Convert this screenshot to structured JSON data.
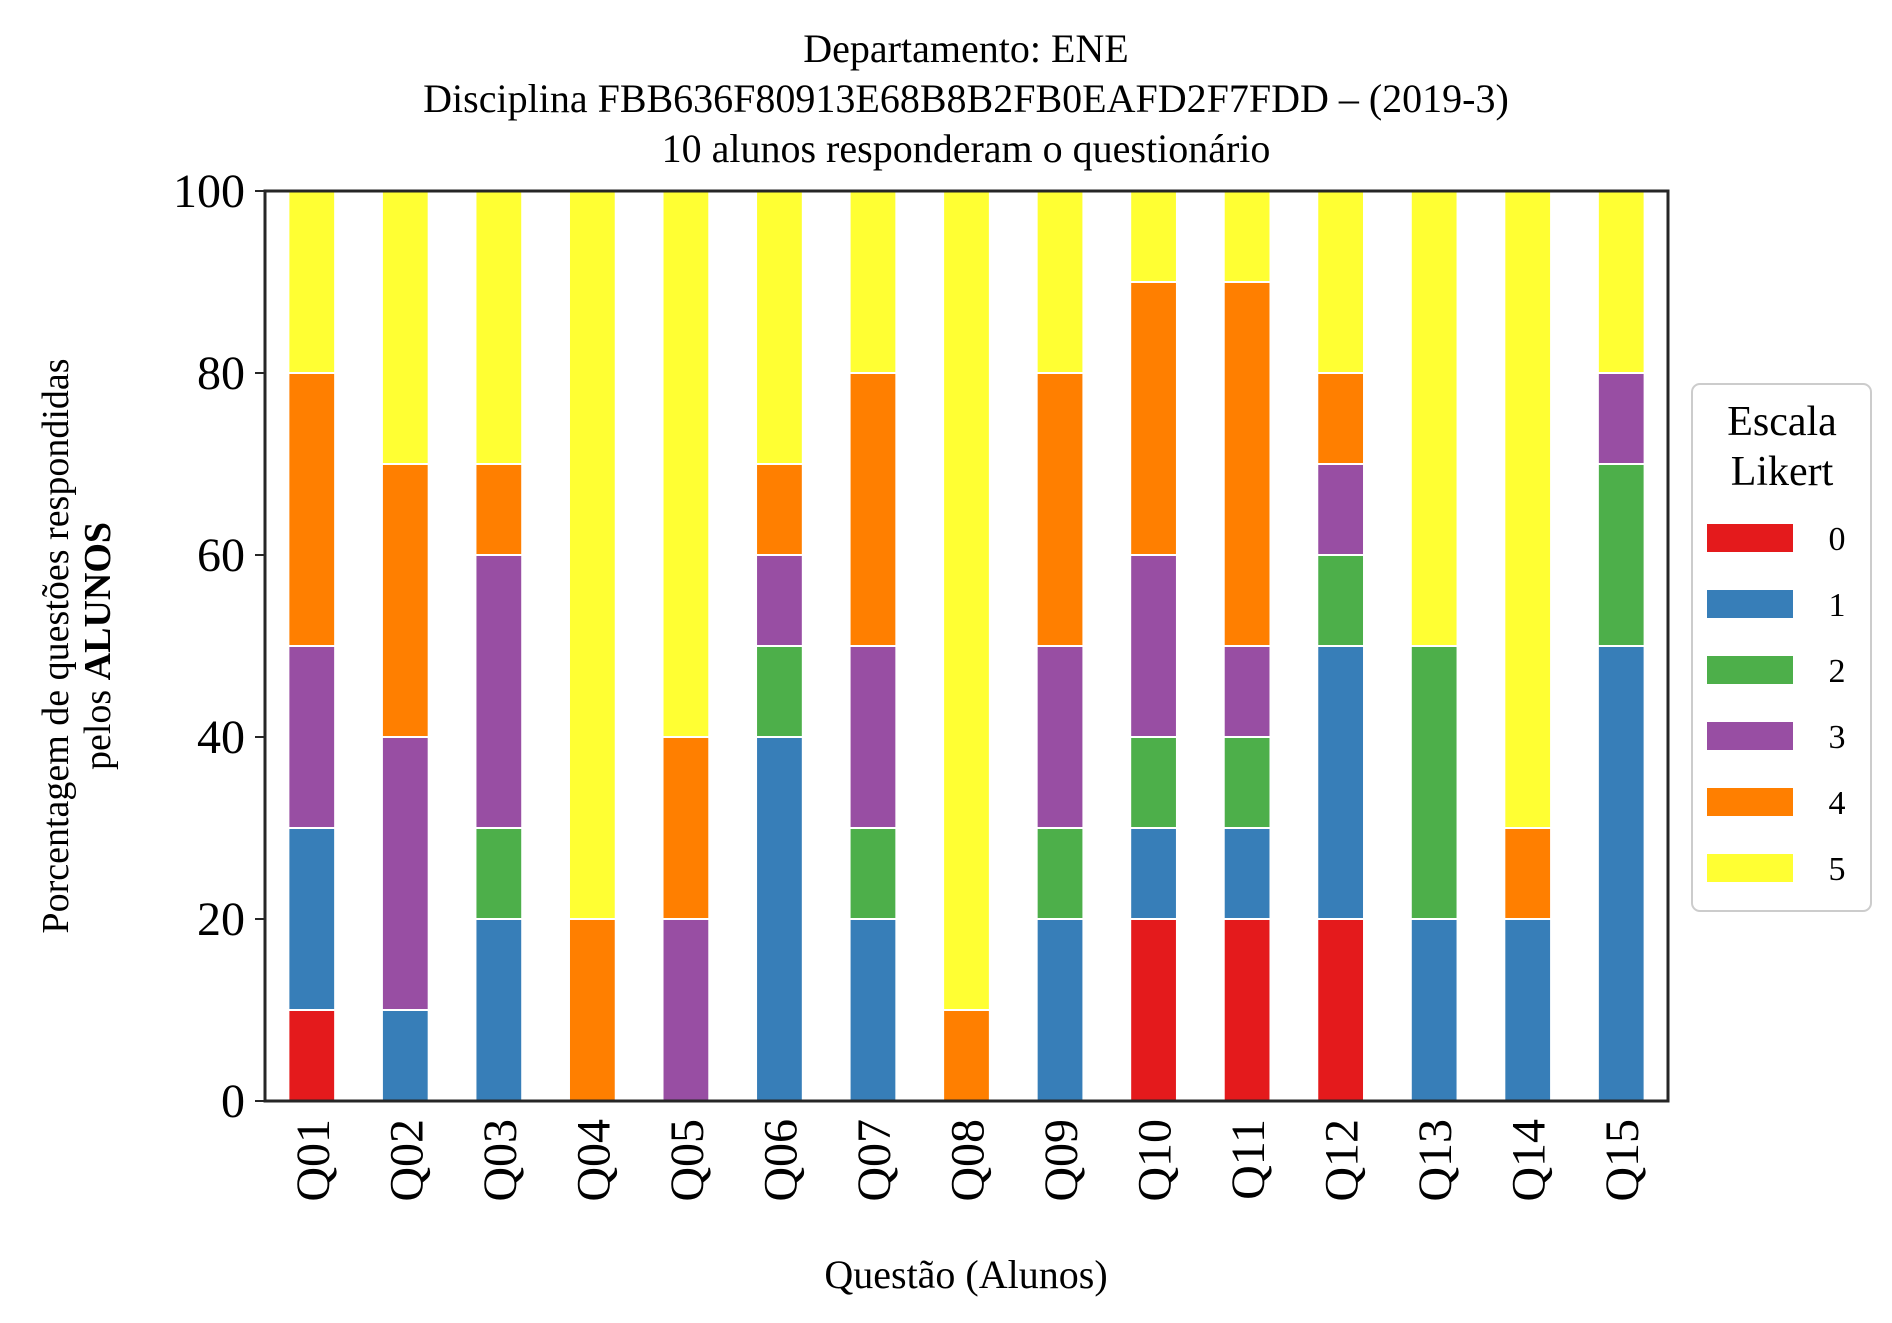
{
  "chart_data": {
    "type": "bar",
    "stacked": true,
    "title_lines": [
      "Departamento: ENE",
      "Disciplina FBB636F80913E68B8B2FB0EAFD2F7FDD – (2019-3)",
      "10 alunos responderam o questionário"
    ],
    "ylabel_line1": "Porcentagem de questões respondidas",
    "ylabel_line2_prefix": "pelos ",
    "ylabel_line2_bold": "ALUNOS",
    "xlabel": "Questão (Alunos)",
    "ylim": [
      0,
      100
    ],
    "yticks": [
      0,
      20,
      40,
      60,
      80,
      100
    ],
    "grid": false,
    "legend_position": "right",
    "legend_title_lines": [
      "Escala",
      "Likert"
    ],
    "categories": [
      "Q01",
      "Q02",
      "Q03",
      "Q04",
      "Q05",
      "Q06",
      "Q07",
      "Q08",
      "Q09",
      "Q10",
      "Q11",
      "Q12",
      "Q13",
      "Q14",
      "Q15"
    ],
    "series": [
      {
        "name": "0",
        "color": "#e41a1c",
        "values": [
          10,
          0,
          0,
          0,
          0,
          0,
          0,
          0,
          0,
          20,
          20,
          20,
          0,
          0,
          0
        ]
      },
      {
        "name": "1",
        "color": "#377eb8",
        "values": [
          20,
          10,
          20,
          0,
          0,
          40,
          20,
          0,
          20,
          10,
          10,
          30,
          20,
          20,
          50
        ]
      },
      {
        "name": "2",
        "color": "#4daf4a",
        "values": [
          0,
          0,
          10,
          0,
          0,
          10,
          10,
          0,
          10,
          10,
          10,
          10,
          30,
          0,
          20
        ]
      },
      {
        "name": "3",
        "color": "#984ea3",
        "values": [
          20,
          30,
          30,
          0,
          20,
          10,
          20,
          0,
          20,
          20,
          10,
          10,
          0,
          0,
          10
        ]
      },
      {
        "name": "4",
        "color": "#ff7f00",
        "values": [
          30,
          30,
          10,
          20,
          20,
          10,
          30,
          10,
          30,
          30,
          40,
          10,
          0,
          10,
          0
        ]
      },
      {
        "name": "5",
        "color": "#ffff33",
        "values": [
          20,
          30,
          30,
          80,
          60,
          30,
          20,
          90,
          20,
          10,
          10,
          20,
          50,
          70,
          20
        ]
      }
    ]
  }
}
